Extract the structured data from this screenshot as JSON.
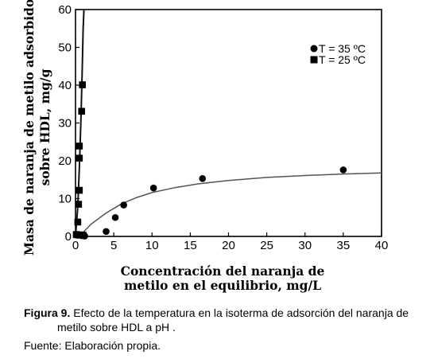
{
  "chart_data": {
    "type": "scatter",
    "xlabel_line1": "Concentración del naranja de",
    "xlabel_line2": "metilo en el equilibrio, mg/L",
    "ylabel_line1": "Masa de naranja de metilo adsorbido",
    "ylabel_line2": "sobre HDL, mg/g",
    "xlim": [
      0,
      40
    ],
    "ylim": [
      0,
      60
    ],
    "xticks": [
      "0",
      "5",
      "10",
      "15",
      "20",
      "25",
      "30",
      "35",
      "40"
    ],
    "yticks": [
      "0",
      "10",
      "20",
      "30",
      "40",
      "50",
      "60"
    ],
    "legend_position": "top-right",
    "grid": false,
    "series": [
      {
        "name": "T = 35 ºC",
        "marker": "circle",
        "points": [
          {
            "x": 0.3,
            "y": 0.3
          },
          {
            "x": 0.8,
            "y": 0.2
          },
          {
            "x": 1.2,
            "y": 0.1
          },
          {
            "x": 4.0,
            "y": 1.3
          },
          {
            "x": 5.2,
            "y": 5.0
          },
          {
            "x": 6.3,
            "y": 8.3
          },
          {
            "x": 10.2,
            "y": 12.8
          },
          {
            "x": 16.6,
            "y": 15.3
          },
          {
            "x": 35.0,
            "y": 17.6
          }
        ],
        "fit": [
          {
            "x": 0.5,
            "y": 0.0
          },
          {
            "x": 2,
            "y": 3.2
          },
          {
            "x": 4,
            "y": 6.2
          },
          {
            "x": 6,
            "y": 8.6
          },
          {
            "x": 8,
            "y": 10.3
          },
          {
            "x": 10,
            "y": 11.6
          },
          {
            "x": 13,
            "y": 12.9
          },
          {
            "x": 16,
            "y": 13.9
          },
          {
            "x": 20,
            "y": 14.8
          },
          {
            "x": 25,
            "y": 15.6
          },
          {
            "x": 30,
            "y": 16.1
          },
          {
            "x": 35,
            "y": 16.5
          },
          {
            "x": 40,
            "y": 16.8
          }
        ]
      },
      {
        "name": "T = 25 ºC",
        "marker": "square",
        "points": [
          {
            "x": 0.1,
            "y": 0.5
          },
          {
            "x": 0.3,
            "y": 0.4
          },
          {
            "x": 0.3,
            "y": 3.8
          },
          {
            "x": 0.4,
            "y": 8.5
          },
          {
            "x": 0.5,
            "y": 12.2
          },
          {
            "x": 0.5,
            "y": 20.7
          },
          {
            "x": 0.5,
            "y": 23.9
          },
          {
            "x": 0.8,
            "y": 33.1
          },
          {
            "x": 0.9,
            "y": 40.1
          },
          {
            "x": 0.8,
            "y": 0.4
          },
          {
            "x": 1.0,
            "y": 0.3
          }
        ],
        "fit": [
          {
            "x": 0.0,
            "y": 0.0
          },
          {
            "x": 0.3,
            "y": 8
          },
          {
            "x": 0.5,
            "y": 18
          },
          {
            "x": 0.7,
            "y": 30
          },
          {
            "x": 0.85,
            "y": 42
          },
          {
            "x": 1.0,
            "y": 55
          },
          {
            "x": 1.1,
            "y": 60
          }
        ]
      }
    ]
  },
  "caption": {
    "label": "Figura 9.",
    "text_line1": " Efecto de la temperatura en la isoterma de adsorción del naranja de",
    "text_line2": "metilo sobre HDL a pH ."
  },
  "source": "Fuente: Elaboración propia."
}
